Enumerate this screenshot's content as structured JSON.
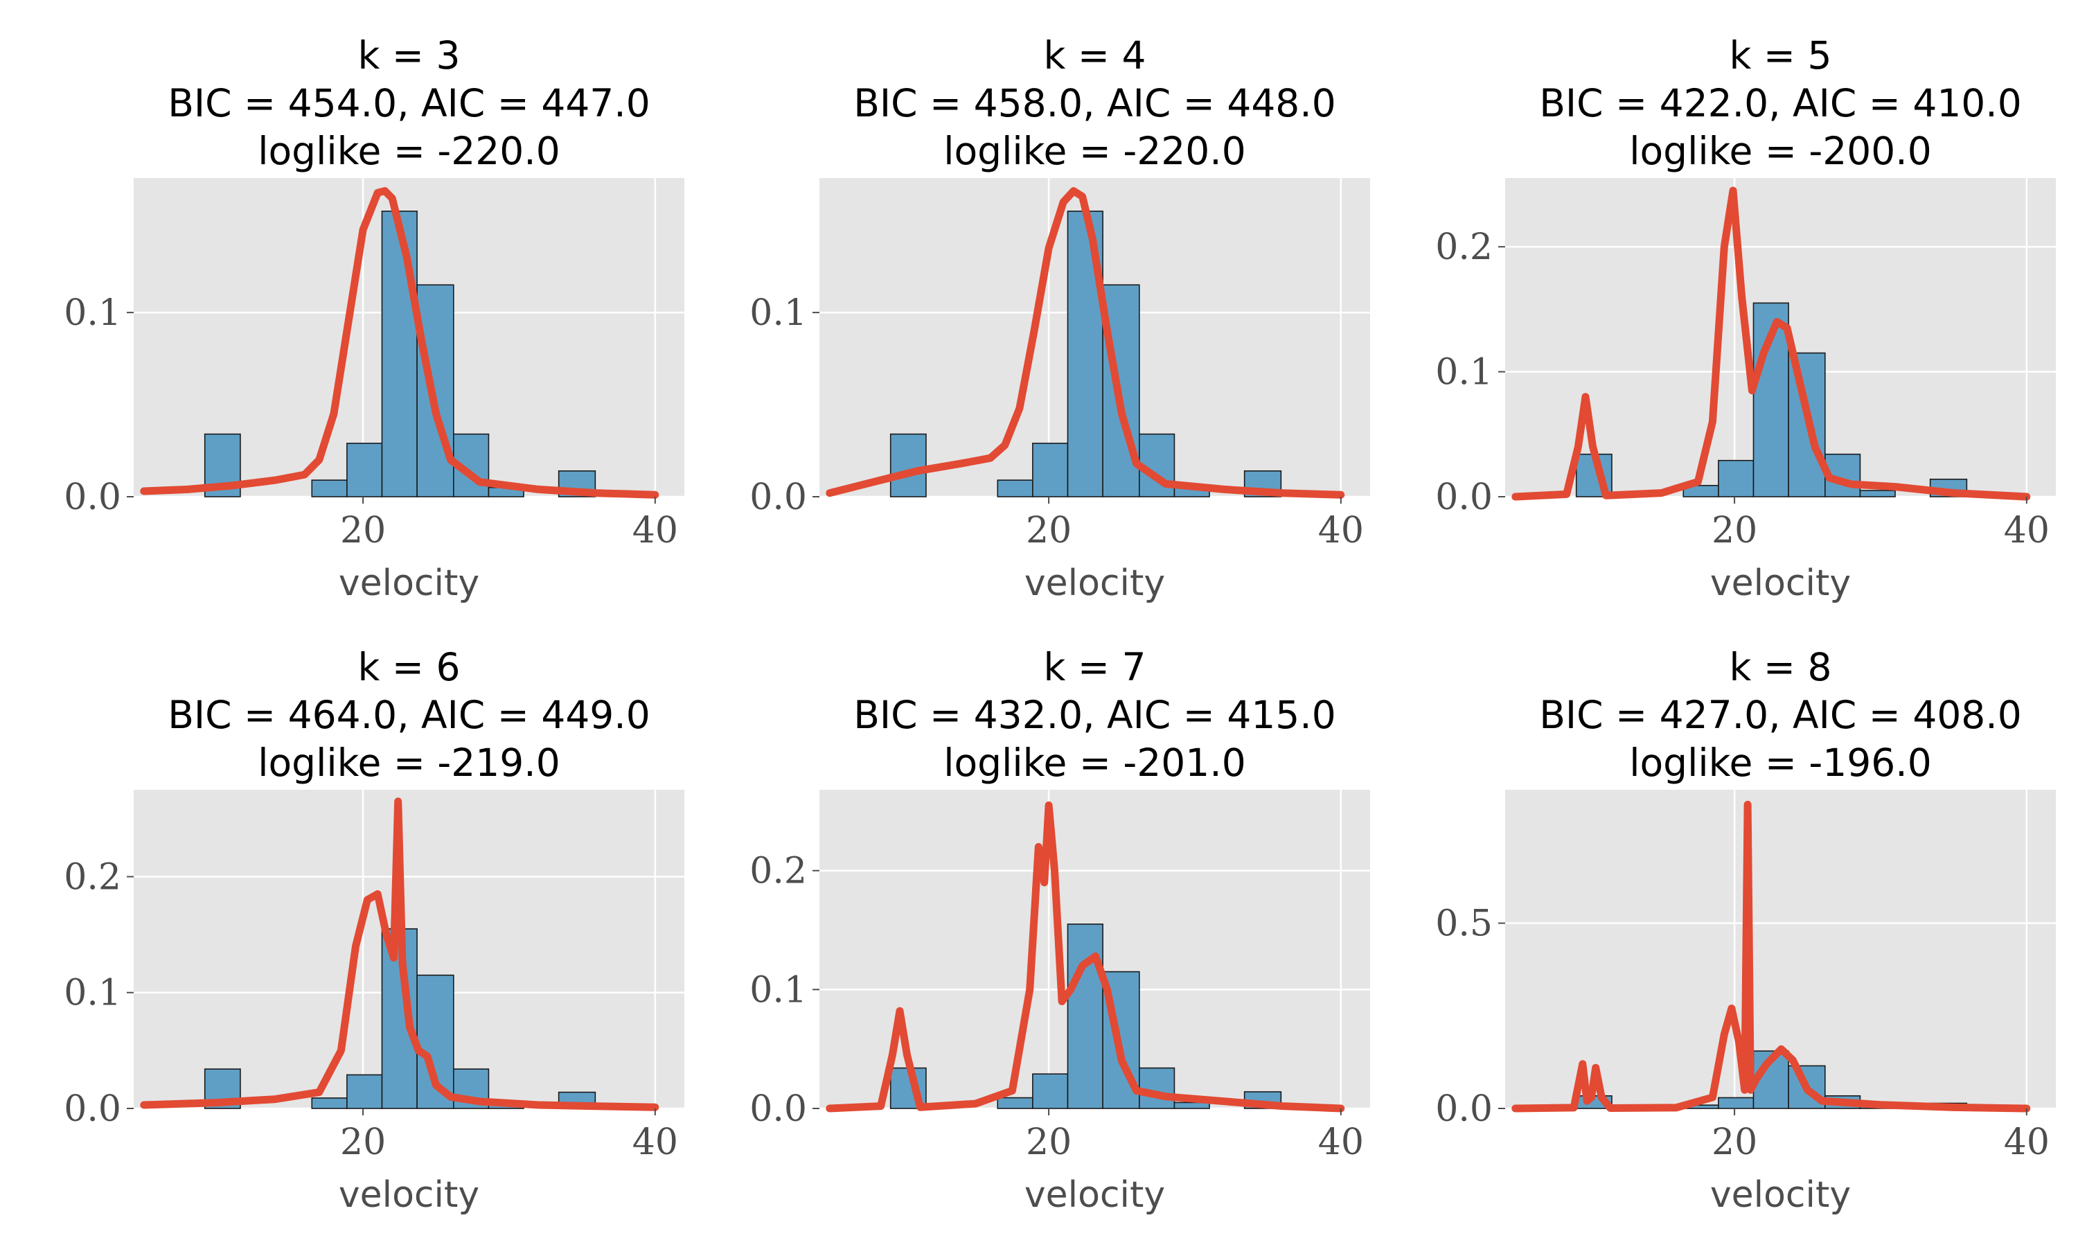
{
  "colors": {
    "axes_background": "#e5e5e5",
    "grid": "#ffffff",
    "bar_fill": "#5f9fc6",
    "bar_edge": "#1a1a1a",
    "density_line": "#e24a33",
    "tick_label": "#4d4d4d",
    "title": "#000000"
  },
  "chart_data": [
    {
      "type": "bar",
      "title_lines": [
        "k = 3",
        "BIC = 454.0, AIC = 447.0",
        "loglike = -220.0"
      ],
      "xlabel": "velocity",
      "ylabel": "",
      "grid": true,
      "xlim": [
        4.3,
        42.0
      ],
      "ylim": [
        0,
        0.173
      ],
      "xticks": [
        20,
        40
      ],
      "xtick_labels": [
        "20",
        "40"
      ],
      "yticks": [
        0.0,
        0.1
      ],
      "ytick_labels": [
        "0.0",
        "0.1"
      ],
      "histogram": {
        "bin_edges": [
          9.17,
          11.6,
          14.0,
          16.5,
          18.9,
          21.3,
          23.7,
          26.2,
          28.6,
          31.0,
          33.4,
          35.9
        ],
        "values": [
          0.034,
          0.0,
          0.0,
          0.009,
          0.029,
          0.155,
          0.115,
          0.034,
          0.005,
          0.0,
          0.014
        ]
      },
      "density": {
        "x": [
          5,
          8,
          11,
          14,
          16,
          17,
          18,
          19,
          20,
          21,
          21.5,
          22,
          23,
          24,
          25,
          26,
          28,
          32,
          36,
          40
        ],
        "y": [
          0.003,
          0.004,
          0.006,
          0.009,
          0.012,
          0.02,
          0.045,
          0.095,
          0.145,
          0.165,
          0.166,
          0.162,
          0.13,
          0.085,
          0.045,
          0.02,
          0.008,
          0.004,
          0.002,
          0.001
        ]
      }
    },
    {
      "type": "bar",
      "title_lines": [
        "k = 4",
        "BIC = 458.0, AIC = 448.0",
        "loglike = -220.0"
      ],
      "xlabel": "velocity",
      "ylabel": "",
      "grid": true,
      "xlim": [
        4.3,
        42.0
      ],
      "ylim": [
        0,
        0.173
      ],
      "xticks": [
        20,
        40
      ],
      "xtick_labels": [
        "20",
        "40"
      ],
      "yticks": [
        0.0,
        0.1
      ],
      "ytick_labels": [
        "0.0",
        "0.1"
      ],
      "histogram": {
        "bin_edges": [
          9.17,
          11.6,
          14.0,
          16.5,
          18.9,
          21.3,
          23.7,
          26.2,
          28.6,
          31.0,
          33.4,
          35.9
        ],
        "values": [
          0.034,
          0.0,
          0.0,
          0.009,
          0.029,
          0.155,
          0.115,
          0.034,
          0.005,
          0.0,
          0.014
        ]
      },
      "density": {
        "x": [
          5,
          8,
          11,
          14,
          16,
          17,
          18,
          19,
          20,
          21,
          21.7,
          22.3,
          23,
          24,
          25,
          26,
          28,
          32,
          36,
          40
        ],
        "y": [
          0.002,
          0.008,
          0.014,
          0.018,
          0.021,
          0.028,
          0.048,
          0.09,
          0.135,
          0.16,
          0.166,
          0.163,
          0.14,
          0.09,
          0.045,
          0.018,
          0.007,
          0.004,
          0.002,
          0.001
        ]
      }
    },
    {
      "type": "bar",
      "title_lines": [
        "k = 5",
        "BIC = 422.0, AIC = 410.0",
        "loglike = -200.0"
      ],
      "xlabel": "velocity",
      "ylabel": "",
      "grid": true,
      "xlim": [
        4.3,
        42.0
      ],
      "ylim": [
        0,
        0.255
      ],
      "xticks": [
        20,
        40
      ],
      "xtick_labels": [
        "20",
        "40"
      ],
      "yticks": [
        0.0,
        0.1,
        0.2
      ],
      "ytick_labels": [
        "0.0",
        "0.1",
        "0.2"
      ],
      "histogram": {
        "bin_edges": [
          9.17,
          11.6,
          14.0,
          16.5,
          18.9,
          21.3,
          23.7,
          26.2,
          28.6,
          31.0,
          33.4,
          35.9
        ],
        "values": [
          0.034,
          0.0,
          0.0,
          0.009,
          0.029,
          0.155,
          0.115,
          0.034,
          0.005,
          0.0,
          0.014
        ]
      },
      "density": {
        "x": [
          5,
          8.5,
          9.3,
          9.8,
          10.3,
          11.2,
          15,
          17.5,
          18.5,
          19.3,
          19.9,
          20.5,
          21.2,
          22,
          22.9,
          23.6,
          24.5,
          25.5,
          26.5,
          28,
          31,
          35,
          40
        ],
        "y": [
          0.0,
          0.002,
          0.04,
          0.08,
          0.04,
          0.001,
          0.003,
          0.012,
          0.06,
          0.2,
          0.245,
          0.16,
          0.085,
          0.115,
          0.14,
          0.135,
          0.09,
          0.04,
          0.015,
          0.01,
          0.008,
          0.003,
          0.0
        ]
      }
    },
    {
      "type": "bar",
      "title_lines": [
        "k = 6",
        "BIC = 464.0, AIC = 449.0",
        "loglike = -219.0"
      ],
      "xlabel": "velocity",
      "ylabel": "",
      "grid": true,
      "xlim": [
        4.3,
        42.0
      ],
      "ylim": [
        0,
        0.275
      ],
      "xticks": [
        20,
        40
      ],
      "xtick_labels": [
        "20",
        "40"
      ],
      "yticks": [
        0.0,
        0.1,
        0.2
      ],
      "ytick_labels": [
        "0.0",
        "0.1",
        "0.2"
      ],
      "histogram": {
        "bin_edges": [
          9.17,
          11.6,
          14.0,
          16.5,
          18.9,
          21.3,
          23.7,
          26.2,
          28.6,
          31.0,
          33.4,
          35.9
        ],
        "values": [
          0.034,
          0.0,
          0.0,
          0.009,
          0.029,
          0.155,
          0.115,
          0.034,
          0.005,
          0.0,
          0.014
        ]
      },
      "density": {
        "x": [
          5,
          10,
          14,
          17,
          18.5,
          19.5,
          20.3,
          21,
          21.6,
          22.1,
          22.4,
          22.7,
          23.2,
          23.8,
          24.4,
          25,
          26,
          28,
          32,
          36,
          40
        ],
        "y": [
          0.003,
          0.005,
          0.008,
          0.014,
          0.05,
          0.14,
          0.18,
          0.185,
          0.15,
          0.13,
          0.265,
          0.125,
          0.07,
          0.05,
          0.045,
          0.02,
          0.01,
          0.006,
          0.003,
          0.002,
          0.001
        ]
      }
    },
    {
      "type": "bar",
      "title_lines": [
        "k = 7",
        "BIC = 432.0, AIC = 415.0",
        "loglike = -201.0"
      ],
      "xlabel": "velocity",
      "ylabel": "",
      "grid": true,
      "xlim": [
        4.3,
        42.0
      ],
      "ylim": [
        0,
        0.268
      ],
      "xticks": [
        20,
        40
      ],
      "xtick_labels": [
        "20",
        "40"
      ],
      "yticks": [
        0.0,
        0.1,
        0.2
      ],
      "ytick_labels": [
        "0.0",
        "0.1",
        "0.2"
      ],
      "histogram": {
        "bin_edges": [
          9.17,
          11.6,
          14.0,
          16.5,
          18.9,
          21.3,
          23.7,
          26.2,
          28.6,
          31.0,
          33.4,
          35.9
        ],
        "values": [
          0.034,
          0.0,
          0.0,
          0.009,
          0.029,
          0.155,
          0.115,
          0.034,
          0.005,
          0.0,
          0.014
        ]
      },
      "density": {
        "x": [
          5,
          8.5,
          9.3,
          9.8,
          10.3,
          11.2,
          15,
          17.5,
          18.7,
          19.3,
          19.7,
          20,
          20.4,
          20.9,
          21.5,
          22.3,
          23.2,
          24,
          25,
          26,
          28,
          32,
          36,
          40
        ],
        "y": [
          0.0,
          0.002,
          0.045,
          0.082,
          0.045,
          0.001,
          0.004,
          0.015,
          0.1,
          0.22,
          0.19,
          0.255,
          0.2,
          0.09,
          0.1,
          0.12,
          0.128,
          0.1,
          0.04,
          0.015,
          0.01,
          0.006,
          0.002,
          0.0
        ]
      }
    },
    {
      "type": "bar",
      "title_lines": [
        "k = 8",
        "BIC = 427.0, AIC = 408.0",
        "loglike = -196.0"
      ],
      "xlabel": "velocity",
      "ylabel": "",
      "grid": true,
      "xlim": [
        4.3,
        42.0
      ],
      "ylim": [
        0,
        0.86
      ],
      "xticks": [
        20,
        40
      ],
      "xtick_labels": [
        "20",
        "40"
      ],
      "yticks": [
        0.0,
        0.5
      ],
      "ytick_labels": [
        "0.0",
        "0.5"
      ],
      "histogram": {
        "bin_edges": [
          9.17,
          11.6,
          14.0,
          16.5,
          18.9,
          21.3,
          23.7,
          26.2,
          28.6,
          31.0,
          33.4,
          35.9
        ],
        "values": [
          0.034,
          0.0,
          0.0,
          0.009,
          0.029,
          0.155,
          0.115,
          0.034,
          0.005,
          0.0,
          0.014
        ]
      },
      "density": {
        "x": [
          5,
          9,
          9.6,
          9.9,
          10.2,
          10.5,
          10.9,
          11.5,
          16,
          18.5,
          19.3,
          19.8,
          20.3,
          20.7,
          20.9,
          21.1,
          21.5,
          22.2,
          23.2,
          24,
          25,
          26,
          30,
          35,
          40
        ],
        "y": [
          0.0,
          0.002,
          0.12,
          0.02,
          0.03,
          0.11,
          0.03,
          0.001,
          0.002,
          0.03,
          0.2,
          0.27,
          0.18,
          0.05,
          0.82,
          0.05,
          0.08,
          0.12,
          0.16,
          0.13,
          0.05,
          0.02,
          0.01,
          0.003,
          0.0
        ]
      }
    }
  ]
}
